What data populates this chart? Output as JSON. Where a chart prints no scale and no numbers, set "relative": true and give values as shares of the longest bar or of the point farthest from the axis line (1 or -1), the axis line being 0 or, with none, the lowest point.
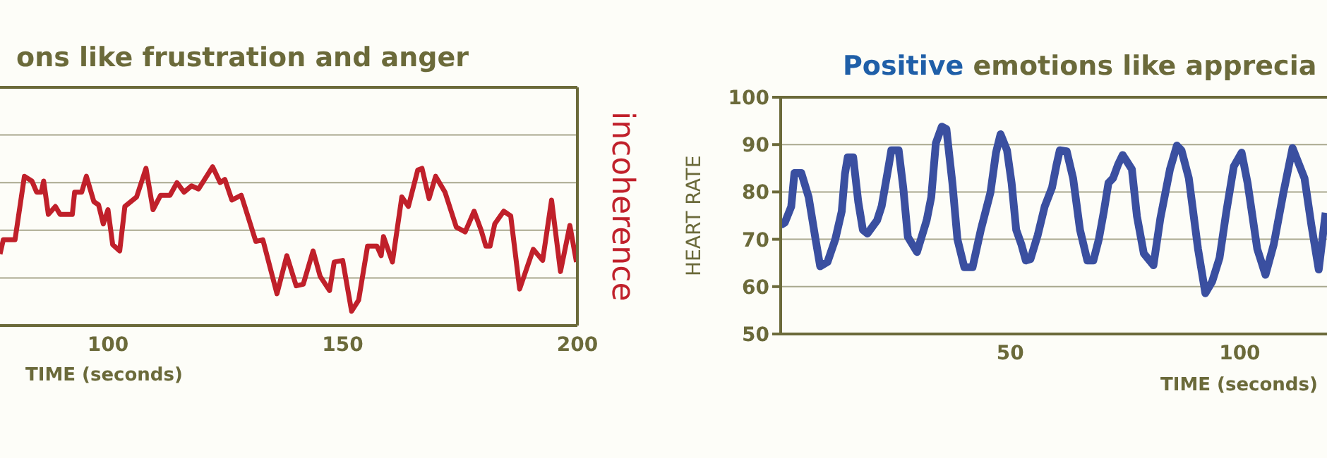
{
  "chart_data": [
    {
      "type": "line",
      "title": "ons like frustration and anger",
      "xlabel": "TIME (seconds)",
      "y2label": "incoherence",
      "relative": true,
      "grid": true,
      "marker": "none",
      "line_style": "solid",
      "xlim": [
        77,
        200
      ],
      "xticks": [
        100,
        150,
        200
      ],
      "x": [
        77,
        77.7,
        80.2,
        82.2,
        83.8,
        84.8,
        85.8,
        86.3,
        87.3,
        88.8,
        89.8,
        92.4,
        92.9,
        94.4,
        95.4,
        97,
        98,
        99,
        100,
        101,
        102.5,
        103.6,
        106.1,
        108.1,
        109.6,
        111.2,
        113.2,
        114.7,
        116.2,
        117.8,
        119.3,
        122.3,
        123.9,
        124.9,
        126.4,
        128.4,
        131.5,
        133,
        136,
        138.1,
        140.1,
        141.6,
        143.7,
        145.2,
        147.2,
        148.2,
        150,
        151.9,
        153.4,
        155.3,
        157.3,
        158.2,
        158.7,
        160.6,
        162.6,
        164,
        166,
        166.9,
        168.4,
        169.8,
        171.8,
        174.2,
        176.1,
        178,
        179.5,
        180.5,
        181.4,
        182.4,
        184.3,
        185.8,
        187.7,
        190.6,
        192.6,
        194.5,
        196.4,
        198.4,
        199.8
      ],
      "series": [
        {
          "color": "#c0202a",
          "values": [
            0.45,
            0.54,
            0.54,
            0.94,
            0.91,
            0.84,
            0.84,
            0.91,
            0.7,
            0.75,
            0.7,
            0.7,
            0.84,
            0.84,
            0.94,
            0.78,
            0.76,
            0.64,
            0.73,
            0.51,
            0.47,
            0.75,
            0.81,
            0.99,
            0.73,
            0.82,
            0.82,
            0.9,
            0.84,
            0.88,
            0.86,
            1,
            0.9,
            0.92,
            0.79,
            0.82,
            0.53,
            0.54,
            0.2,
            0.44,
            0.25,
            0.26,
            0.47,
            0.31,
            0.22,
            0.4,
            0.41,
            0.09,
            0.16,
            0.5,
            0.5,
            0.44,
            0.56,
            0.4,
            0.81,
            0.75,
            0.98,
            0.99,
            0.8,
            0.94,
            0.84,
            0.62,
            0.59,
            0.72,
            0.6,
            0.5,
            0.5,
            0.64,
            0.72,
            0.69,
            0.23,
            0.48,
            0.41,
            0.79,
            0.34,
            0.63,
            0.4
          ]
        }
      ]
    },
    {
      "type": "line",
      "title": "Positive emotions like apprecia",
      "xlabel": "TIME (seconds)",
      "ylabel": "HEART RATE",
      "grid": "y",
      "marker": "none",
      "line_style": "solid",
      "xlim": [
        0,
        119
      ],
      "xticks": [
        50,
        100
      ],
      "ylim": [
        50,
        100
      ],
      "yticks": [
        50,
        60,
        70,
        80,
        90,
        100
      ],
      "x": [
        0,
        0.9,
        2.3,
        3,
        4.5,
        6.1,
        7.6,
        8.6,
        10.2,
        11.9,
        13.3,
        14,
        14.6,
        15.8,
        16.9,
        17.9,
        18.9,
        21,
        22,
        23.6,
        24.1,
        25.7,
        26.7,
        27.7,
        29.7,
        31.8,
        32.8,
        33.8,
        35.1,
        36.1,
        37.4,
        38.5,
        40,
        41.8,
        43.6,
        45.7,
        46.9,
        47.9,
        49.3,
        50.3,
        51.3,
        52.4,
        53.4,
        54.4,
        56,
        57.5,
        59.1,
        60.1,
        60.8,
        62.3,
        63.7,
        65.2,
        66.8,
        68.1,
        69.3,
        70.4,
        71.4,
        72.4,
        73.5,
        74.5,
        75.5,
        76.5,
        77.6,
        79.1,
        81.2,
        82.7,
        84.8,
        86.3,
        87.3,
        88.9,
        90.9,
        92.5,
        94,
        95.6,
        97.1,
        98.7,
        100.4,
        101.7,
        103.8,
        105.6,
        107.4,
        109.5,
        111.5,
        114.1,
        115.6,
        117.2,
        118.7
      ],
      "series": [
        {
          "color": "#3a4fa0",
          "values": [
            73,
            73.5,
            76.9,
            84,
            84,
            78.9,
            70,
            64.3,
            65.2,
            70,
            75.9,
            83.8,
            87.3,
            87.3,
            77.9,
            72,
            71.2,
            74,
            77,
            85.9,
            88.8,
            88.8,
            80.9,
            70.5,
            67.3,
            74,
            78.9,
            90.3,
            93.8,
            93.3,
            81.9,
            70,
            64.1,
            64.1,
            72,
            79.9,
            88.3,
            92.2,
            88.8,
            81.9,
            72,
            69,
            65.5,
            65.8,
            70.9,
            76.9,
            80.9,
            85.8,
            88.8,
            88.6,
            82.9,
            72,
            65.5,
            65.5,
            70,
            75.9,
            81.9,
            82.9,
            85.8,
            87.8,
            86.3,
            84.8,
            74.9,
            67,
            64.5,
            74.4,
            84.8,
            89.8,
            88.8,
            82.9,
            68,
            58.6,
            61.1,
            66.1,
            76,
            85.4,
            88.3,
            81.9,
            68,
            62.5,
            68.9,
            79.8,
            89.3,
            82.9,
            73,
            63.6,
            75.6
          ]
        }
      ]
    }
  ]
}
